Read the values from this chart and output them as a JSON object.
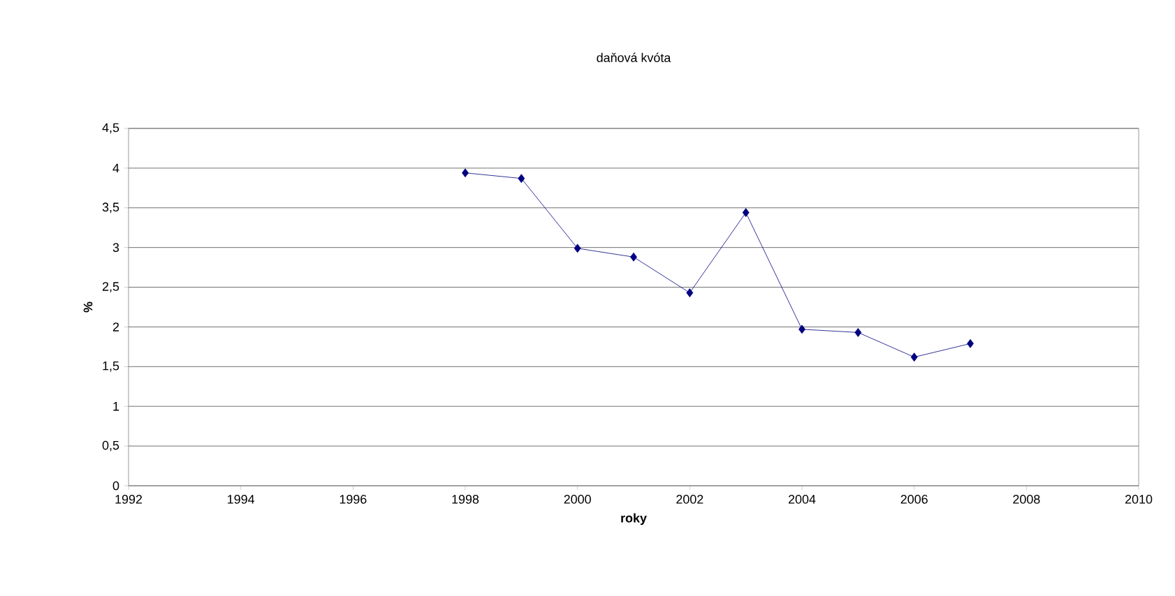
{
  "chart_data": {
    "type": "line",
    "title": "daňová kvóta",
    "xlabel": "roky",
    "ylabel": "%",
    "x": [
      1998,
      1999,
      2000,
      2001,
      2002,
      2003,
      2004,
      2005,
      2006,
      2007
    ],
    "series": [
      {
        "color": "#000080",
        "values": [
          3.94,
          3.87,
          2.99,
          2.88,
          2.43,
          3.44,
          1.97,
          1.93,
          1.62,
          1.79
        ]
      }
    ],
    "xlim": [
      1992,
      2010
    ],
    "xticks": [
      1992,
      1994,
      1996,
      1998,
      2000,
      2002,
      2004,
      2006,
      2008,
      2010
    ],
    "ylim": [
      0,
      4.5
    ],
    "yticks": [
      0,
      {
        "value": 0.5,
        "label": "0,5"
      },
      1,
      {
        "value": 1.5,
        "label": "1,5"
      },
      2,
      {
        "value": 2.5,
        "label": "2,5"
      },
      3,
      {
        "value": 3.5,
        "label": "3,5"
      },
      4,
      {
        "value": 4.5,
        "label": "4,5"
      }
    ],
    "grid": "y",
    "marker": "diamond",
    "line_style": "solid"
  }
}
